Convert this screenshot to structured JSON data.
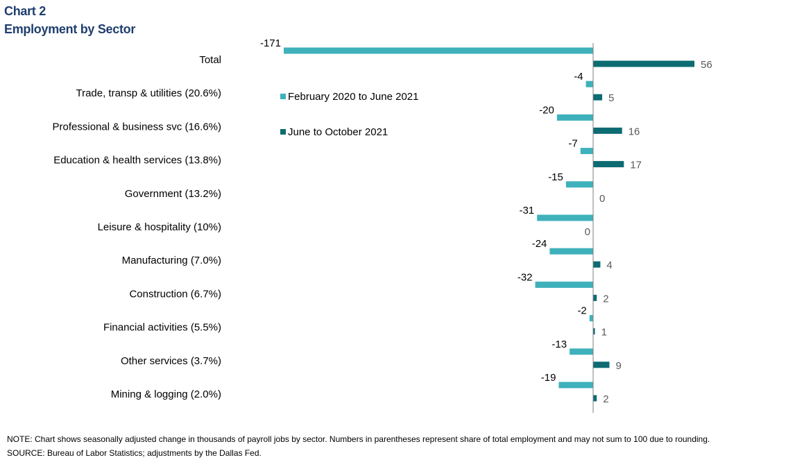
{
  "header": {
    "title": "Chart 2",
    "subtitle": "Employment by Sector"
  },
  "footer": {
    "note": "NOTE: Chart shows seasonally adjusted change in thousands of payroll jobs by sector. Numbers in parentheses represent share of total employment and may not sum to 100 due to rounding.",
    "source": "SOURCE: Bureau of Labor Statistics; adjustments by the Dallas Fed."
  },
  "colors": {
    "series1": "#3eb1bb",
    "series2": "#0d6b72",
    "title": "#1f3e6e",
    "label": "#000000",
    "value_label_s2": "#595959",
    "axis": "#7f7f7f"
  },
  "chart_data": {
    "type": "bar",
    "orientation": "horizontal",
    "categories": [
      "Total",
      "Trade, transp & utilities (20.6%)",
      "Professional & business svc (16.6%)",
      "Education & health services (13.8%)",
      "Government (13.2%)",
      "Leisure & hospitality (10%)",
      "Manufacturing (7.0%)",
      "Construction (6.7%)",
      "Financial activities (5.5%)",
      "Other services (3.7%)",
      "Mining & logging (2.0%)"
    ],
    "series": [
      {
        "name": "February 2020 to June 2021",
        "values": [
          -171,
          -4,
          -20,
          -7,
          -15,
          -31,
          -24,
          -32,
          -2,
          -13,
          -19
        ]
      },
      {
        "name": "June to October 2021",
        "values": [
          56,
          5,
          16,
          17,
          0,
          0,
          4,
          2,
          1,
          9,
          2
        ]
      }
    ],
    "xlim": [
      -171,
      56
    ],
    "grid": false,
    "legend_position": "upper-center-left"
  }
}
